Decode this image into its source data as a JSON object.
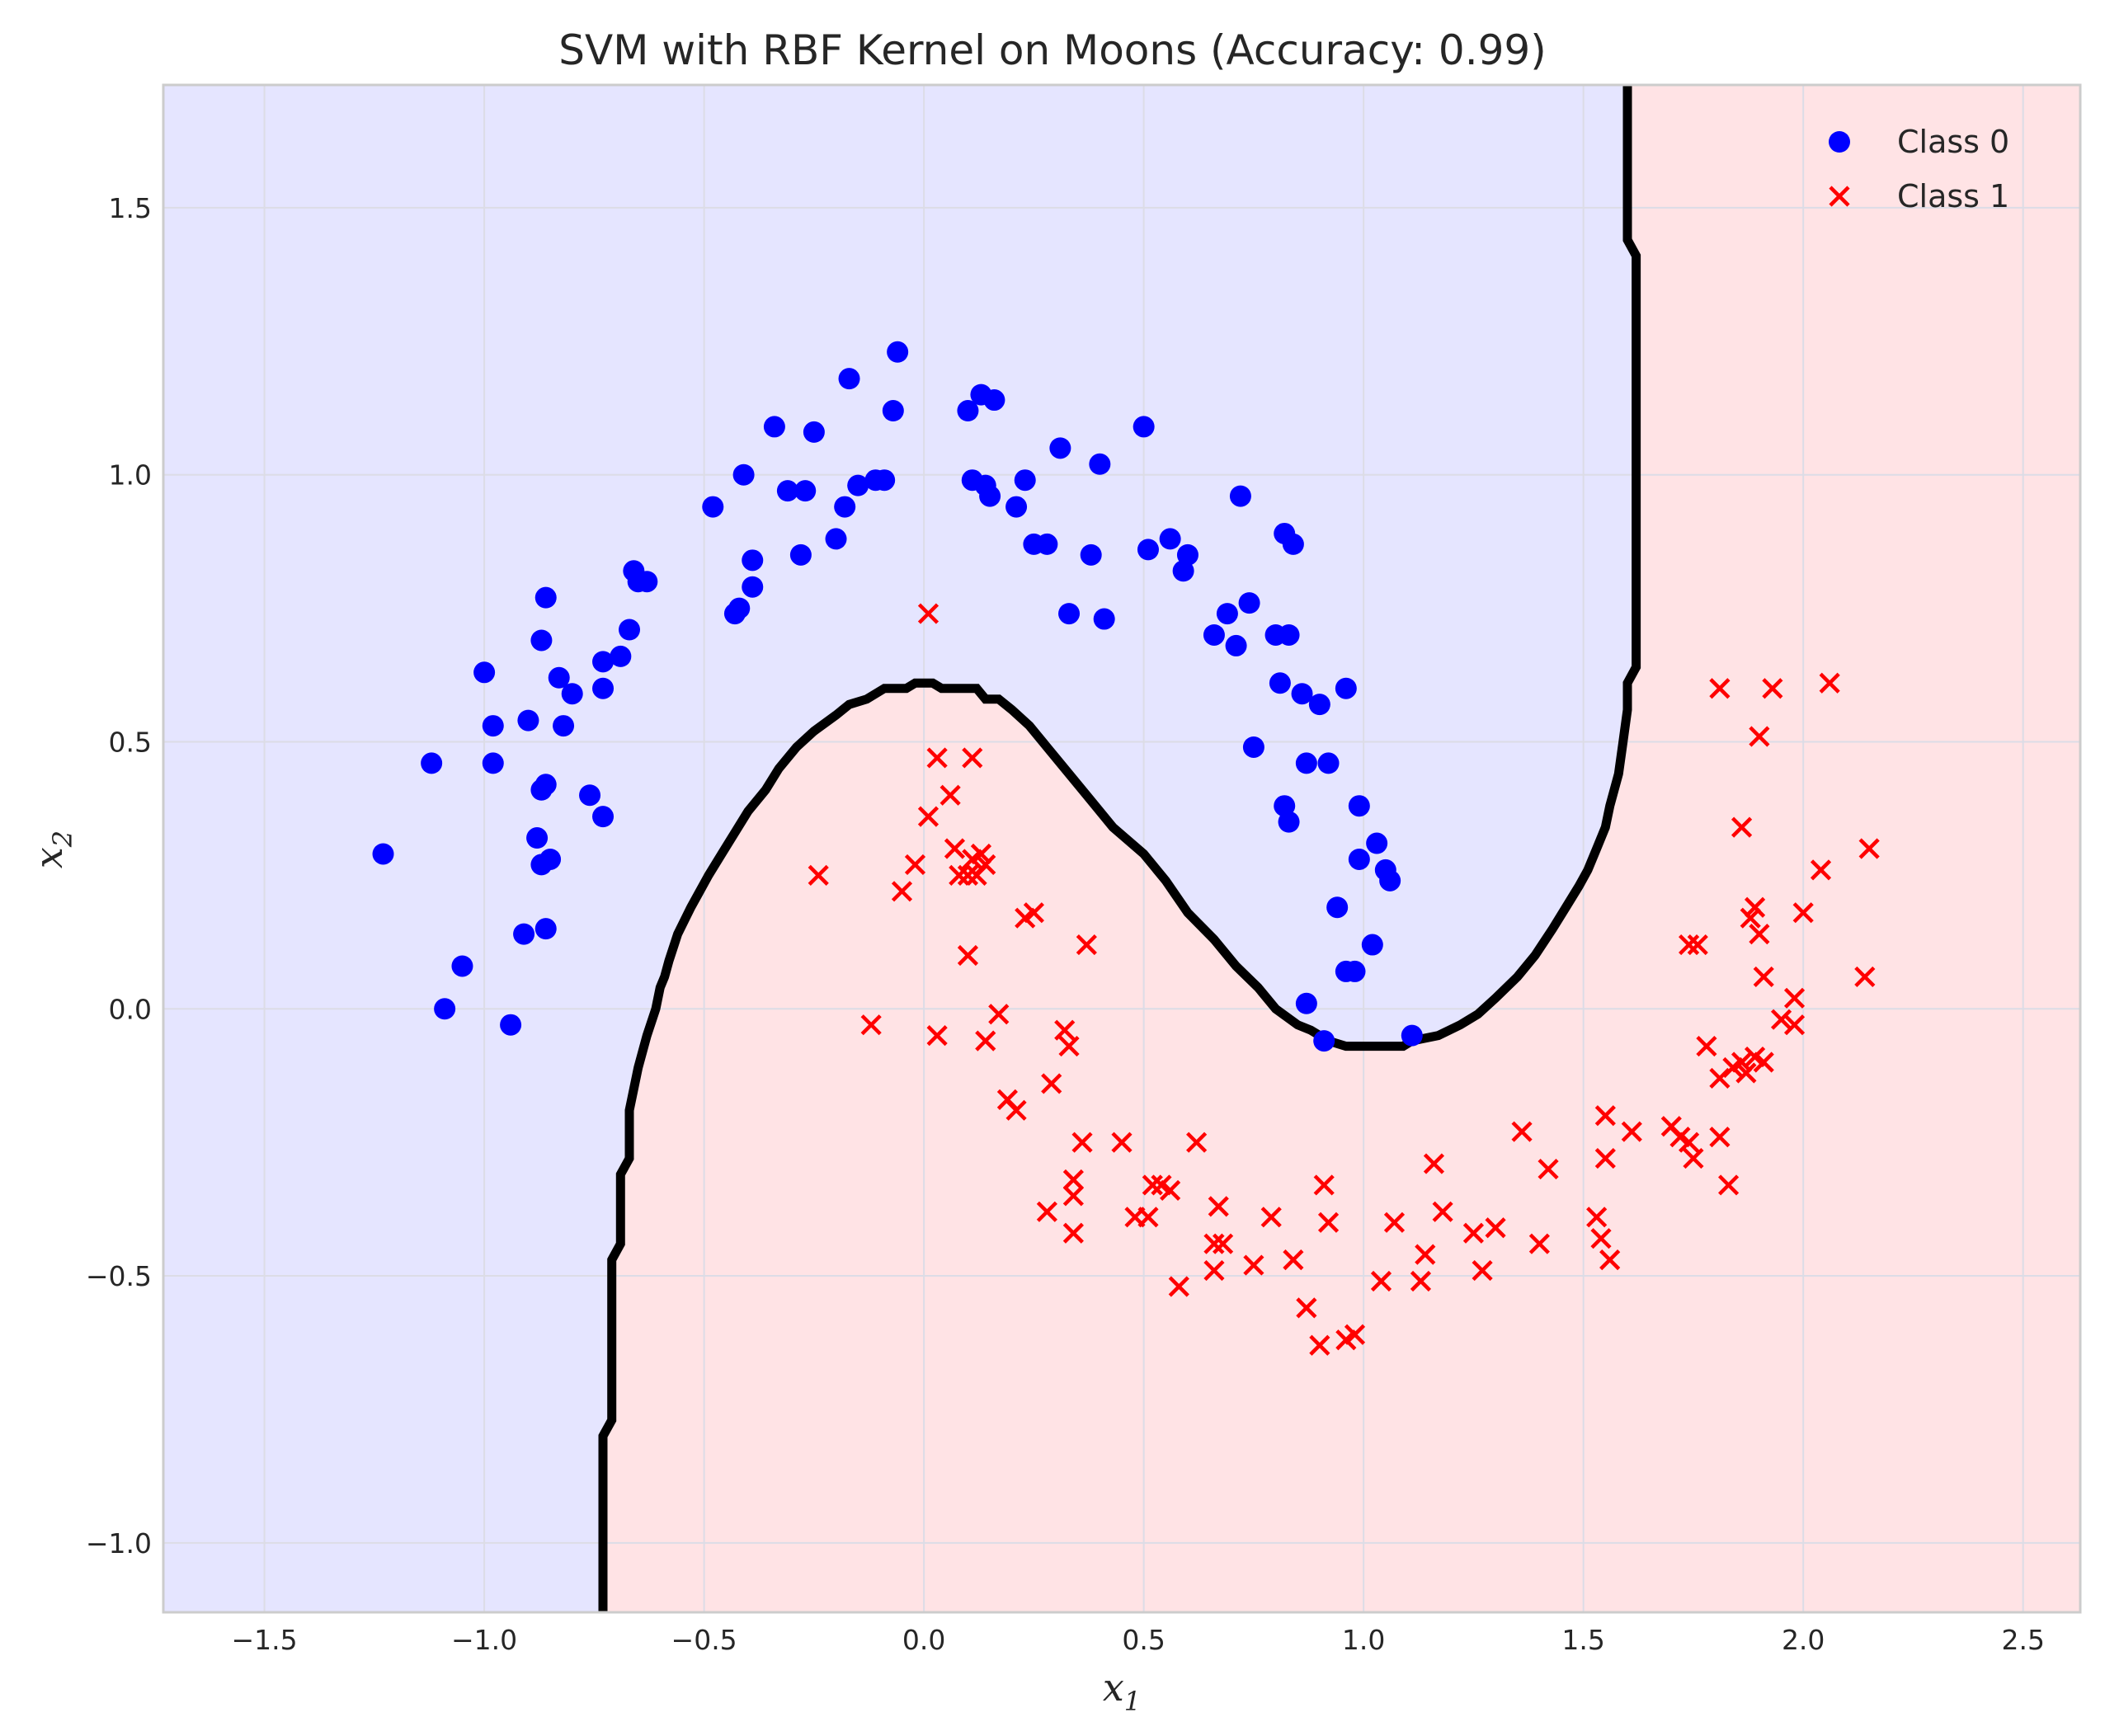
{
  "chart_data": {
    "type": "scatter",
    "title": "SVM with RBF Kernel on Moons (Accuracy: 0.99)",
    "xlabel": "x",
    "xlabel_sub": "1",
    "ylabel": "x",
    "ylabel_sub": "2",
    "xlim": [
      -1.73,
      2.63
    ],
    "ylim": [
      -1.13,
      1.73
    ],
    "xticks": [
      -1.5,
      -1.0,
      -0.5,
      0.0,
      0.5,
      1.0,
      1.5,
      2.0,
      2.5
    ],
    "xtick_labels": [
      "−1.5",
      "−1.0",
      "−0.5",
      "0.0",
      "0.5",
      "1.0",
      "1.5",
      "2.0",
      "2.5"
    ],
    "yticks": [
      -1.0,
      -0.5,
      0.0,
      0.5,
      1.0,
      1.5
    ],
    "ytick_labels": [
      "−1.0",
      "−0.5",
      "0.0",
      "0.5",
      "1.0",
      "1.5"
    ],
    "grid": true,
    "legend_position": "top-right",
    "region_colors": {
      "class0": "#e5e5ff",
      "class1": "#ffe3e5"
    },
    "boundary_color": "#000000",
    "decision_boundary": [
      [
        -0.73,
        -1.13
      ],
      [
        -0.73,
        -0.8
      ],
      [
        -0.71,
        -0.77
      ],
      [
        -0.71,
        -0.47
      ],
      [
        -0.69,
        -0.44
      ],
      [
        -0.69,
        -0.31
      ],
      [
        -0.67,
        -0.28
      ],
      [
        -0.67,
        -0.19
      ],
      [
        -0.65,
        -0.11
      ],
      [
        -0.63,
        -0.05
      ],
      [
        -0.61,
        0.0
      ],
      [
        -0.6,
        0.04
      ],
      [
        -0.59,
        0.06
      ],
      [
        -0.58,
        0.09
      ],
      [
        -0.56,
        0.14
      ],
      [
        -0.53,
        0.19
      ],
      [
        -0.51,
        0.22
      ],
      [
        -0.49,
        0.25
      ],
      [
        -0.46,
        0.29
      ],
      [
        -0.43,
        0.33
      ],
      [
        -0.4,
        0.37
      ],
      [
        -0.36,
        0.41
      ],
      [
        -0.33,
        0.45
      ],
      [
        -0.29,
        0.49
      ],
      [
        -0.25,
        0.52
      ],
      [
        -0.2,
        0.55
      ],
      [
        -0.17,
        0.57
      ],
      [
        -0.13,
        0.58
      ],
      [
        -0.09,
        0.6
      ],
      [
        -0.04,
        0.6
      ],
      [
        -0.02,
        0.61
      ],
      [
        0.02,
        0.61
      ],
      [
        0.04,
        0.6
      ],
      [
        0.12,
        0.6
      ],
      [
        0.14,
        0.58
      ],
      [
        0.17,
        0.58
      ],
      [
        0.2,
        0.56
      ],
      [
        0.24,
        0.53
      ],
      [
        0.3,
        0.47
      ],
      [
        0.37,
        0.4
      ],
      [
        0.43,
        0.34
      ],
      [
        0.5,
        0.29
      ],
      [
        0.55,
        0.24
      ],
      [
        0.6,
        0.18
      ],
      [
        0.66,
        0.13
      ],
      [
        0.71,
        0.08
      ],
      [
        0.76,
        0.04
      ],
      [
        0.8,
        0.0
      ],
      [
        0.85,
        -0.03
      ],
      [
        0.88,
        -0.04
      ],
      [
        0.92,
        -0.06
      ],
      [
        0.96,
        -0.07
      ],
      [
        1.09,
        -0.07
      ],
      [
        1.11,
        -0.06
      ],
      [
        1.17,
        -0.05
      ],
      [
        1.22,
        -0.03
      ],
      [
        1.26,
        -0.01
      ],
      [
        1.3,
        0.02
      ],
      [
        1.35,
        0.06
      ],
      [
        1.39,
        0.1
      ],
      [
        1.43,
        0.15
      ],
      [
        1.46,
        0.19
      ],
      [
        1.49,
        0.23
      ],
      [
        1.51,
        0.26
      ],
      [
        1.53,
        0.3
      ],
      [
        1.55,
        0.34
      ],
      [
        1.56,
        0.38
      ],
      [
        1.58,
        0.44
      ],
      [
        1.59,
        0.5
      ],
      [
        1.6,
        0.56
      ],
      [
        1.6,
        0.61
      ],
      [
        1.62,
        0.64
      ],
      [
        1.62,
        1.41
      ],
      [
        1.6,
        1.44
      ],
      [
        1.6,
        1.73
      ]
    ],
    "series": [
      {
        "name": "Class 0",
        "color": "#0000ff",
        "marker": "circle",
        "points": [
          [
            -1.23,
            0.29
          ],
          [
            -1.12,
            0.46
          ],
          [
            -1.09,
            0.0
          ],
          [
            -1.05,
            0.08
          ],
          [
            -1.0,
            0.63
          ],
          [
            -0.98,
            0.53
          ],
          [
            -0.98,
            0.46
          ],
          [
            -0.94,
            -0.03
          ],
          [
            -0.91,
            0.14
          ],
          [
            -0.9,
            0.54
          ],
          [
            -0.88,
            0.32
          ],
          [
            -0.87,
            0.27
          ],
          [
            -0.87,
            0.69
          ],
          [
            -0.87,
            0.41
          ],
          [
            -0.86,
            0.77
          ],
          [
            -0.86,
            0.42
          ],
          [
            -0.85,
            0.28
          ],
          [
            -0.86,
            0.15
          ],
          [
            -0.83,
            0.62
          ],
          [
            -0.82,
            0.53
          ],
          [
            -0.8,
            0.59
          ],
          [
            -0.76,
            0.4
          ],
          [
            -0.73,
            0.36
          ],
          [
            -0.73,
            0.6
          ],
          [
            -0.73,
            0.65
          ],
          [
            -0.69,
            0.66
          ],
          [
            -0.67,
            0.71
          ],
          [
            -0.66,
            0.82
          ],
          [
            -0.65,
            0.8
          ],
          [
            -0.63,
            0.8
          ],
          [
            -0.48,
            0.94
          ],
          [
            -0.43,
            0.74
          ],
          [
            -0.42,
            0.75
          ],
          [
            -0.41,
            1.0
          ],
          [
            -0.39,
            0.79
          ],
          [
            -0.39,
            0.84
          ],
          [
            -0.34,
            1.09
          ],
          [
            -0.31,
            0.97
          ],
          [
            -0.28,
            0.85
          ],
          [
            -0.27,
            0.97
          ],
          [
            -0.25,
            1.08
          ],
          [
            -0.2,
            0.88
          ],
          [
            -0.18,
            0.94
          ],
          [
            -0.17,
            1.18
          ],
          [
            -0.15,
            0.98
          ],
          [
            -0.11,
            0.99
          ],
          [
            -0.09,
            0.99
          ],
          [
            -0.07,
            1.12
          ],
          [
            -0.06,
            1.23
          ],
          [
            0.1,
            1.12
          ],
          [
            0.11,
            0.99
          ],
          [
            0.13,
            1.15
          ],
          [
            0.14,
            0.98
          ],
          [
            0.15,
            0.96
          ],
          [
            0.16,
            1.14
          ],
          [
            0.21,
            0.94
          ],
          [
            0.23,
            0.99
          ],
          [
            0.25,
            0.87
          ],
          [
            0.28,
            0.87
          ],
          [
            0.31,
            1.05
          ],
          [
            0.33,
            0.74
          ],
          [
            0.38,
            0.85
          ],
          [
            0.4,
            1.02
          ],
          [
            0.41,
            0.73
          ],
          [
            0.5,
            1.09
          ],
          [
            0.51,
            0.86
          ],
          [
            0.56,
            0.88
          ],
          [
            0.59,
            0.82
          ],
          [
            0.6,
            0.85
          ],
          [
            0.66,
            0.7
          ],
          [
            0.69,
            0.74
          ],
          [
            0.71,
            0.68
          ],
          [
            0.72,
            0.96
          ],
          [
            0.74,
            0.76
          ],
          [
            0.75,
            0.49
          ],
          [
            0.8,
            0.7
          ],
          [
            0.81,
            0.61
          ],
          [
            0.82,
            0.38
          ],
          [
            0.82,
            0.89
          ],
          [
            0.83,
            0.35
          ],
          [
            0.83,
            0.7
          ],
          [
            0.84,
            0.87
          ],
          [
            0.86,
            0.59
          ],
          [
            0.87,
            0.46
          ],
          [
            0.87,
            0.01
          ],
          [
            0.9,
            0.57
          ],
          [
            0.91,
            -0.06
          ],
          [
            0.92,
            0.46
          ],
          [
            0.94,
            0.19
          ],
          [
            0.96,
            0.6
          ],
          [
            0.96,
            0.07
          ],
          [
            0.98,
            0.07
          ],
          [
            0.99,
            0.28
          ],
          [
            0.99,
            0.38
          ],
          [
            1.02,
            0.12
          ],
          [
            1.03,
            0.31
          ],
          [
            1.05,
            0.26
          ],
          [
            1.06,
            0.24
          ],
          [
            1.11,
            -0.05
          ]
        ]
      },
      {
        "name": "Class 1",
        "color": "#ff0000",
        "marker": "x",
        "points": [
          [
            -0.24,
            0.25
          ],
          [
            -0.12,
            -0.03
          ],
          [
            -0.05,
            0.22
          ],
          [
            -0.02,
            0.27
          ],
          [
            0.01,
            0.74
          ],
          [
            0.01,
            0.36
          ],
          [
            0.03,
            0.47
          ],
          [
            0.03,
            -0.05
          ],
          [
            0.06,
            0.4
          ],
          [
            0.07,
            0.3
          ],
          [
            0.08,
            0.25
          ],
          [
            0.1,
            0.25
          ],
          [
            0.1,
            0.1
          ],
          [
            0.11,
            0.47
          ],
          [
            0.11,
            0.28
          ],
          [
            0.12,
            0.25
          ],
          [
            0.13,
            0.29
          ],
          [
            0.14,
            0.27
          ],
          [
            0.14,
            -0.06
          ],
          [
            0.17,
            -0.01
          ],
          [
            0.19,
            -0.17
          ],
          [
            0.21,
            -0.19
          ],
          [
            0.23,
            0.17
          ],
          [
            0.25,
            0.18
          ],
          [
            0.28,
            -0.38
          ],
          [
            0.29,
            -0.14
          ],
          [
            0.32,
            -0.04
          ],
          [
            0.33,
            -0.07
          ],
          [
            0.34,
            -0.32
          ],
          [
            0.34,
            -0.35
          ],
          [
            0.34,
            -0.42
          ],
          [
            0.36,
            -0.25
          ],
          [
            0.37,
            0.12
          ],
          [
            0.45,
            -0.25
          ],
          [
            0.48,
            -0.39
          ],
          [
            0.51,
            -0.39
          ],
          [
            0.52,
            -0.33
          ],
          [
            0.54,
            -0.33
          ],
          [
            0.56,
            -0.34
          ],
          [
            0.58,
            -0.52
          ],
          [
            0.62,
            -0.25
          ],
          [
            0.66,
            -0.44
          ],
          [
            0.66,
            -0.49
          ],
          [
            0.67,
            -0.37
          ],
          [
            0.68,
            -0.44
          ],
          [
            0.75,
            -0.48
          ],
          [
            0.79,
            -0.39
          ],
          [
            0.84,
            -0.47
          ],
          [
            0.87,
            -0.56
          ],
          [
            0.9,
            -0.63
          ],
          [
            0.91,
            -0.33
          ],
          [
            0.92,
            -0.4
          ],
          [
            0.96,
            -0.62
          ],
          [
            0.98,
            -0.61
          ],
          [
            1.04,
            -0.51
          ],
          [
            1.07,
            -0.4
          ],
          [
            1.13,
            -0.51
          ],
          [
            1.14,
            -0.46
          ],
          [
            1.16,
            -0.29
          ],
          [
            1.18,
            -0.38
          ],
          [
            1.25,
            -0.42
          ],
          [
            1.27,
            -0.49
          ],
          [
            1.3,
            -0.41
          ],
          [
            1.36,
            -0.23
          ],
          [
            1.4,
            -0.44
          ],
          [
            1.42,
            -0.3
          ],
          [
            1.53,
            -0.39
          ],
          [
            1.54,
            -0.43
          ],
          [
            1.55,
            -0.2
          ],
          [
            1.55,
            -0.28
          ],
          [
            1.56,
            -0.47
          ],
          [
            1.61,
            -0.23
          ],
          [
            1.7,
            -0.22
          ],
          [
            1.72,
            -0.24
          ],
          [
            1.74,
            0.12
          ],
          [
            1.74,
            -0.25
          ],
          [
            1.75,
            -0.28
          ],
          [
            1.76,
            0.12
          ],
          [
            1.78,
            -0.07
          ],
          [
            1.81,
            -0.24
          ],
          [
            1.81,
            -0.13
          ],
          [
            1.81,
            0.6
          ],
          [
            1.83,
            -0.33
          ],
          [
            1.84,
            -0.11
          ],
          [
            1.86,
            0.34
          ],
          [
            1.86,
            -0.1
          ],
          [
            1.87,
            -0.12
          ],
          [
            1.88,
            0.17
          ],
          [
            1.89,
            0.19
          ],
          [
            1.89,
            -0.09
          ],
          [
            1.9,
            0.51
          ],
          [
            1.9,
            0.14
          ],
          [
            1.91,
            0.06
          ],
          [
            1.91,
            -0.1
          ],
          [
            1.93,
            0.6
          ],
          [
            1.95,
            -0.02
          ],
          [
            1.98,
            -0.03
          ],
          [
            1.98,
            0.02
          ],
          [
            2.0,
            0.18
          ],
          [
            2.04,
            0.26
          ],
          [
            2.06,
            0.61
          ],
          [
            2.14,
            0.06
          ],
          [
            2.15,
            0.3
          ]
        ]
      }
    ]
  }
}
